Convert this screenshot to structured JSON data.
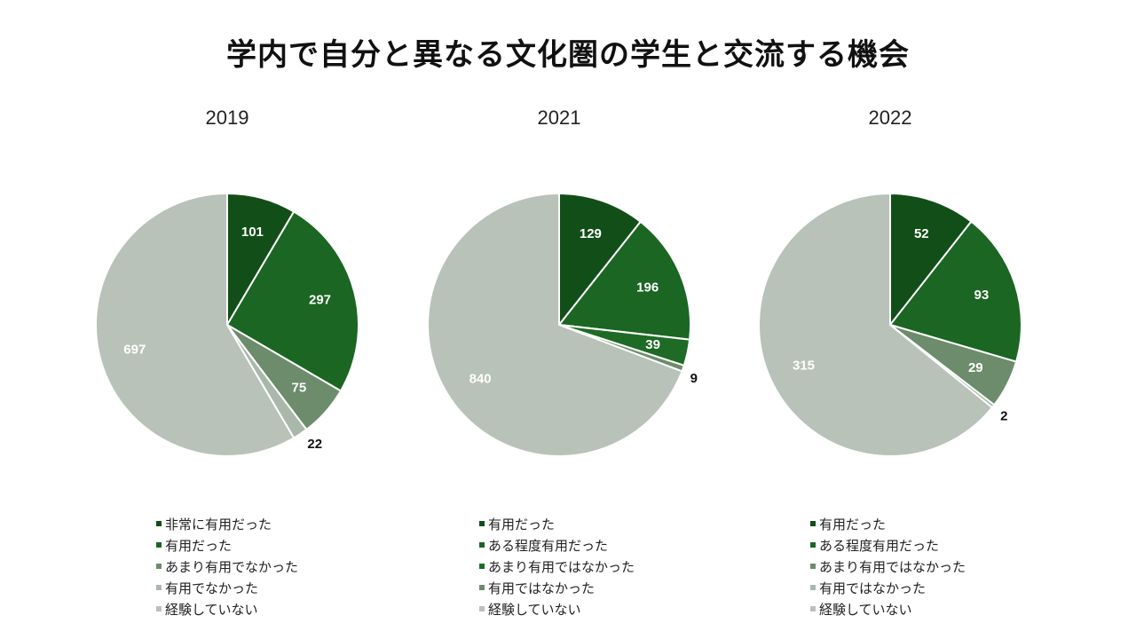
{
  "title": "学内で自分と異なる文化圏の学生と交流する機会",
  "chart_data": [
    {
      "type": "pie",
      "title": "2019",
      "legend_position": "bottom",
      "slices": [
        {
          "label": "非常に有用だった",
          "value": 101,
          "color": "#124f18"
        },
        {
          "label": "有用だった",
          "value": 297,
          "color": "#1a6622"
        },
        {
          "label": "あまり有用でなかった",
          "value": 75,
          "color": "#6c8c6c"
        },
        {
          "label": "有用でなかった",
          "value": 22,
          "color": "#a9b8ab"
        },
        {
          "label": "経験していない",
          "value": 697,
          "color": "#b8c2b8"
        }
      ]
    },
    {
      "type": "pie",
      "title": "2021",
      "legend_position": "bottom",
      "slices": [
        {
          "label": "有用だった",
          "value": 129,
          "color": "#124f18"
        },
        {
          "label": "ある程度有用だった",
          "value": 196,
          "color": "#1a6622"
        },
        {
          "label": "あまり有用ではなかった",
          "value": 39,
          "color": "#1e6b26"
        },
        {
          "label": "有用ではなかった",
          "value": 9,
          "color": "#6c8c6c"
        },
        {
          "label": "経験していない",
          "value": 840,
          "color": "#b8c2b8"
        }
      ]
    },
    {
      "type": "pie",
      "title": "2022",
      "legend_position": "bottom",
      "slices": [
        {
          "label": "有用だった",
          "value": 52,
          "color": "#124f18"
        },
        {
          "label": "ある程度有用だった",
          "value": 93,
          "color": "#1a6622"
        },
        {
          "label": "あまり有用ではなかった",
          "value": 29,
          "color": "#6c8c6c"
        },
        {
          "label": "有用ではなかった",
          "value": 2,
          "color": "#a9b8ab"
        },
        {
          "label": "経験していない",
          "value": 315,
          "color": "#b8c2b8"
        }
      ]
    }
  ]
}
